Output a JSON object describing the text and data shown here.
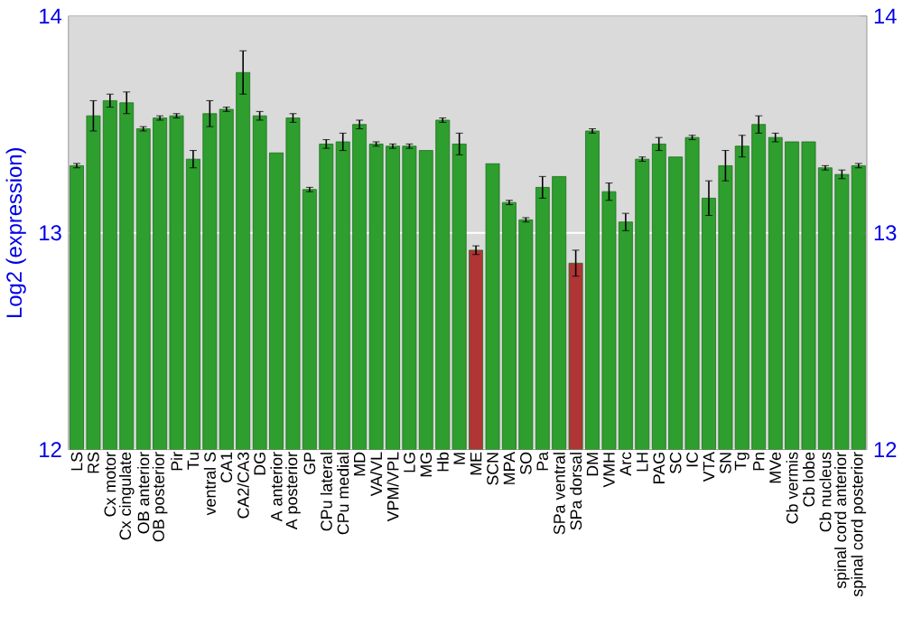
{
  "chart_data": {
    "type": "bar",
    "ylabel": "Log2 (expression)",
    "categories": [
      "LS",
      "RS",
      "Cx motor",
      "Cx cingulate",
      "OB anterior",
      "OB posterior",
      "Pir",
      "Tu",
      "ventral S",
      "CA1",
      "CA2/CA3",
      "DG",
      "A anterior",
      "A posterior",
      "GP",
      "CPu lateral",
      "CPu medial",
      "MD",
      "VA/VL",
      "VPM/VPL",
      "LG",
      "MG",
      "Hb",
      "M",
      "ME",
      "SCN",
      "MPA",
      "SO",
      "Pa",
      "SPa ventral",
      "SPa dorsal",
      "DM",
      "VMH",
      "Arc",
      "LH",
      "PAG",
      "SC",
      "IC",
      "VTA",
      "SN",
      "Tg",
      "Pn",
      "MVe",
      "Cb vermis",
      "Cb lobe",
      "Cb nucleus",
      "spinal cord anterior",
      "spinal cord posterior"
    ],
    "values": [
      13.31,
      13.54,
      13.61,
      13.6,
      13.48,
      13.53,
      13.54,
      13.34,
      13.55,
      13.57,
      13.74,
      13.54,
      13.37,
      13.53,
      13.2,
      13.41,
      13.42,
      13.5,
      13.41,
      13.4,
      13.4,
      13.38,
      13.52,
      13.41,
      12.92,
      13.32,
      13.14,
      13.06,
      13.21,
      13.26,
      12.86,
      13.47,
      13.19,
      13.05,
      13.34,
      13.41,
      13.35,
      13.44,
      13.16,
      13.31,
      13.4,
      13.5,
      13.44,
      13.42,
      13.42,
      13.3,
      13.27,
      13.31
    ],
    "errors": [
      0.01,
      0.07,
      0.03,
      0.05,
      0.01,
      0.01,
      0.01,
      0.04,
      0.06,
      0.01,
      0.1,
      0.02,
      null,
      0.02,
      0.01,
      0.02,
      0.04,
      0.02,
      0.01,
      0.01,
      0.01,
      null,
      0.01,
      0.05,
      0.02,
      null,
      0.01,
      0.01,
      0.05,
      null,
      0.06,
      0.01,
      0.04,
      0.04,
      0.01,
      0.03,
      null,
      0.01,
      0.08,
      0.07,
      0.05,
      0.04,
      0.02,
      null,
      null,
      0.01,
      0.02,
      0.01
    ],
    "colors": [
      "#2e9e2e",
      "#2e9e2e",
      "#2e9e2e",
      "#2e9e2e",
      "#2e9e2e",
      "#2e9e2e",
      "#2e9e2e",
      "#2e9e2e",
      "#2e9e2e",
      "#2e9e2e",
      "#2e9e2e",
      "#2e9e2e",
      "#2e9e2e",
      "#2e9e2e",
      "#2e9e2e",
      "#2e9e2e",
      "#2e9e2e",
      "#2e9e2e",
      "#2e9e2e",
      "#2e9e2e",
      "#2e9e2e",
      "#2e9e2e",
      "#2e9e2e",
      "#2e9e2e",
      "#b03535",
      "#2e9e2e",
      "#2e9e2e",
      "#2e9e2e",
      "#2e9e2e",
      "#2e9e2e",
      "#b03535",
      "#2e9e2e",
      "#2e9e2e",
      "#2e9e2e",
      "#2e9e2e",
      "#2e9e2e",
      "#2e9e2e",
      "#2e9e2e",
      "#2e9e2e",
      "#2e9e2e",
      "#2e9e2e",
      "#2e9e2e",
      "#2e9e2e",
      "#2e9e2e",
      "#2e9e2e",
      "#2e9e2e",
      "#2e9e2e",
      "#2e9e2e"
    ],
    "ylim": [
      12,
      14
    ],
    "yticks": [
      12,
      13,
      14
    ],
    "y2lim": [
      12,
      14
    ],
    "y2ticks": [
      12,
      13,
      14
    ],
    "grid": "y"
  }
}
